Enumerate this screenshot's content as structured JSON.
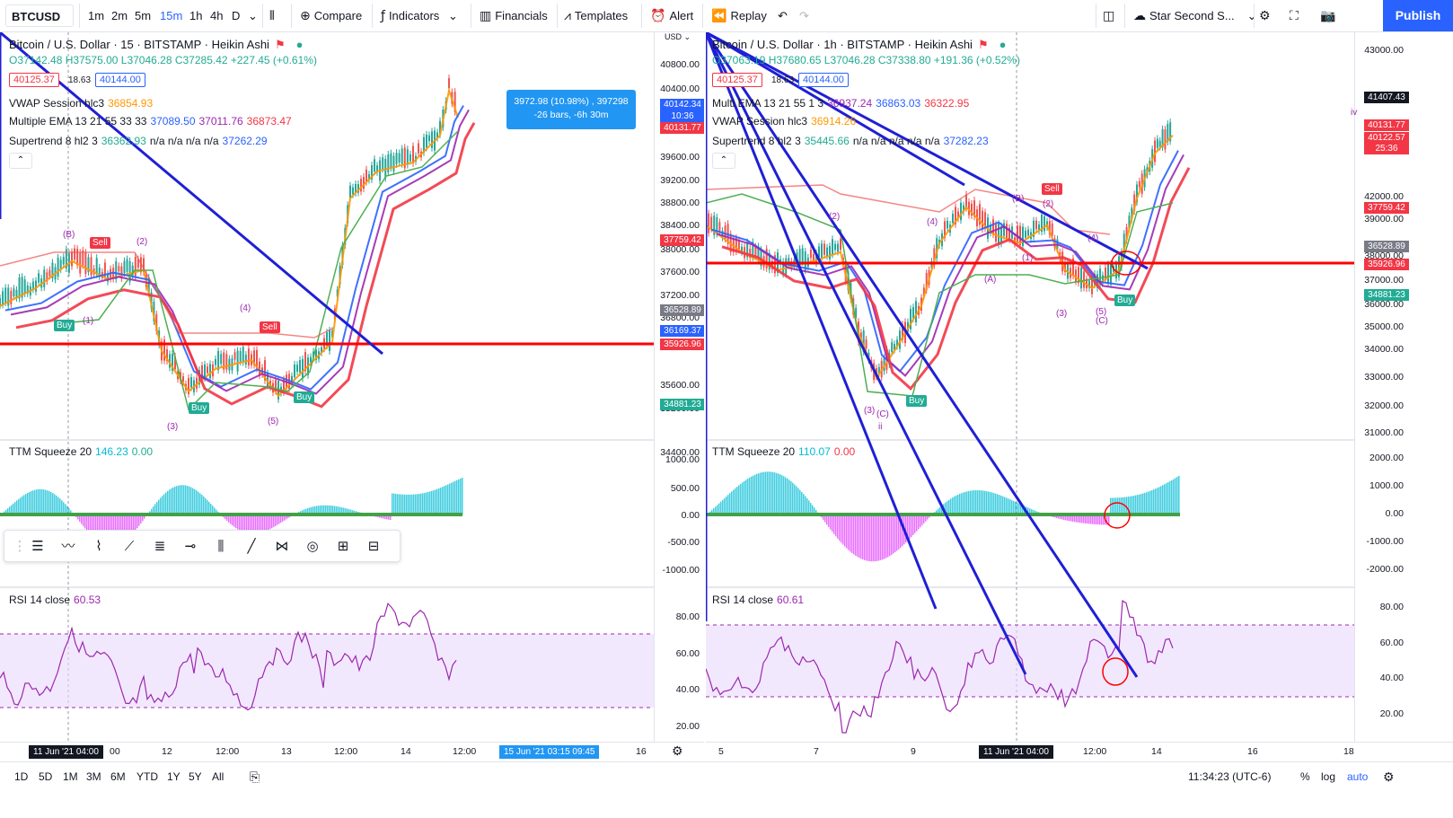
{
  "toolbar": {
    "symbol": "BTCUSD",
    "intervals": [
      "1m",
      "2m",
      "5m",
      "15m",
      "1h",
      "4h",
      "D"
    ],
    "active_interval": "15m",
    "compare": "Compare",
    "indicators": "Indicators",
    "financials": "Financials",
    "templates": "Templates",
    "alert": "Alert",
    "replay": "Replay",
    "layout_name": "Star Second S...",
    "publish": "Publish"
  },
  "left": {
    "title": "Bitcoin / U.S. Dollar · 15 · BITSTAMP · Heikin Ashi",
    "ohlc": "O37142.48 H37575.00 L37046.28 C37285.42 +227.45 (+0.61%)",
    "bid": "40125.37",
    "spread": "18.63",
    "ask": "40144.00",
    "usd": "USD",
    "vwap": {
      "name": "VWAP Session hlc3",
      "v1": "36854.93"
    },
    "ema": {
      "name": "Multiple EMA 13 21 55 33 33",
      "v1": "37089.50",
      "v2": "37011.76",
      "v3": "36873.47"
    },
    "supertrend": {
      "name": "Supertrend 8 hl2 3",
      "v1": "36362.93",
      "na": "n/a n/a n/a n/a",
      "v2": "37262.29"
    },
    "ttm": {
      "name": "TTM Squeeze 20",
      "v1": "146.23",
      "v2": "0.00"
    },
    "rsi": {
      "name": "RSI 14 close",
      "v1": "60.53"
    },
    "measure": {
      "line1": "3972.98 (10.98%) , 397298",
      "line2": "-26 bars, -6h 30m"
    },
    "price_ticks": [
      "40800.00",
      "40400.00",
      "39600.00",
      "39200.00",
      "38800.00",
      "38400.00",
      "38000.00",
      "37600.00",
      "37200.00",
      "36800.00",
      "35600.00",
      "35200.00",
      "34400.00"
    ],
    "price_labels": [
      {
        "text": "40142.34",
        "color": "#2962ff"
      },
      {
        "text": "10:36",
        "color": "#2962ff"
      },
      {
        "text": "40131.77",
        "color": "#f23645"
      },
      {
        "text": "37759.42",
        "color": "#f23645"
      },
      {
        "text": "36528.89",
        "color": "#787b86"
      },
      {
        "text": "36169.37",
        "color": "#2962ff"
      },
      {
        "text": "35926.96",
        "color": "#f23645"
      },
      {
        "text": "34881.23",
        "color": "#22ab94"
      }
    ],
    "ttm_ticks": [
      "1000.00",
      "500.00",
      "0.00",
      "-500.00",
      "-1000.00"
    ],
    "rsi_ticks": [
      "80.00",
      "60.00",
      "40.00",
      "20.00"
    ],
    "time_labels": [
      "00",
      "12",
      "12:00",
      "13",
      "12:00",
      "14",
      "12:00",
      "16"
    ],
    "time_hl": "11 Jun '21  04:00",
    "time_range": "15 Jun '21  03:15  09:45",
    "signals": {
      "buy": "Buy",
      "sell": "Sell"
    },
    "waves": [
      "(B)",
      "(2)",
      "(1)",
      "(3)",
      "(4)",
      "(5)"
    ]
  },
  "right": {
    "title": "Bitcoin / U.S. Dollar · 1h · BITSTAMP · Heikin Ashi",
    "ohlc": "O37063.19 H37680.65 L37046.28 C37338.80 +191.36 (+0.52%)",
    "bid": "40125.37",
    "spread": "18.63",
    "ask": "40144.00",
    "ema": {
      "name": "Multi EMA 13 21 55 1 3",
      "v1": "36937.24",
      "v2": "36863.03",
      "v3": "36322.95"
    },
    "vwap": {
      "name": "VWAP Session hlc3",
      "v1": "36914.26"
    },
    "supertrend": {
      "name": "Supertrend 8 hl2 3",
      "v1": "35445.66",
      "na": "n/a n/a n/a n/a n/a",
      "v2": "37282.23"
    },
    "ttm": {
      "name": "TTM Squeeze 20",
      "v1": "110.07",
      "v2": "0.00"
    },
    "rsi": {
      "name": "RSI 14 close",
      "v1": "60.61"
    },
    "price_ticks": [
      "43000.00",
      "42000.00",
      "39000.00",
      "38000.00",
      "37000.00",
      "36000.00",
      "35000.00",
      "34000.00",
      "33000.00",
      "32000.00",
      "31000.00"
    ],
    "price_labels": [
      {
        "text": "41407.43",
        "color": "#131722"
      },
      {
        "text": "40131.77",
        "color": "#f23645"
      },
      {
        "text": "40122.57",
        "color": "#f23645"
      },
      {
        "text": "25:36",
        "color": "#f23645"
      },
      {
        "text": "37759.42",
        "color": "#f23645"
      },
      {
        "text": "36528.89",
        "color": "#787b86"
      },
      {
        "text": "35926.96",
        "color": "#f23645"
      },
      {
        "text": "34881.23",
        "color": "#22ab94"
      }
    ],
    "ttm_ticks": [
      "2000.00",
      "1000.00",
      "0.00",
      "-1000.00",
      "-2000.00"
    ],
    "rsi_ticks": [
      "80.00",
      "60.00",
      "40.00",
      "20.00"
    ],
    "time_labels": [
      "5",
      "7",
      "9",
      "12:00",
      "14",
      "16",
      "18"
    ],
    "time_hl": "11 Jun '21  04:00",
    "signals": {
      "buy": "Buy",
      "sell": "Sell"
    },
    "waves": [
      "(2)",
      "(4)",
      "(B)",
      "(2)",
      "(1)",
      "(4)",
      "(A)",
      "(3)",
      "(5)",
      "(C)",
      "(3)",
      "(C)",
      "ii",
      "iv"
    ]
  },
  "bottom": {
    "ranges": [
      "1D",
      "5D",
      "1M",
      "3M",
      "6M",
      "YTD",
      "1Y",
      "5Y",
      "All"
    ],
    "clock": "11:34:23 (UTC-6)",
    "pct": "%",
    "log": "log",
    "auto": "auto"
  }
}
